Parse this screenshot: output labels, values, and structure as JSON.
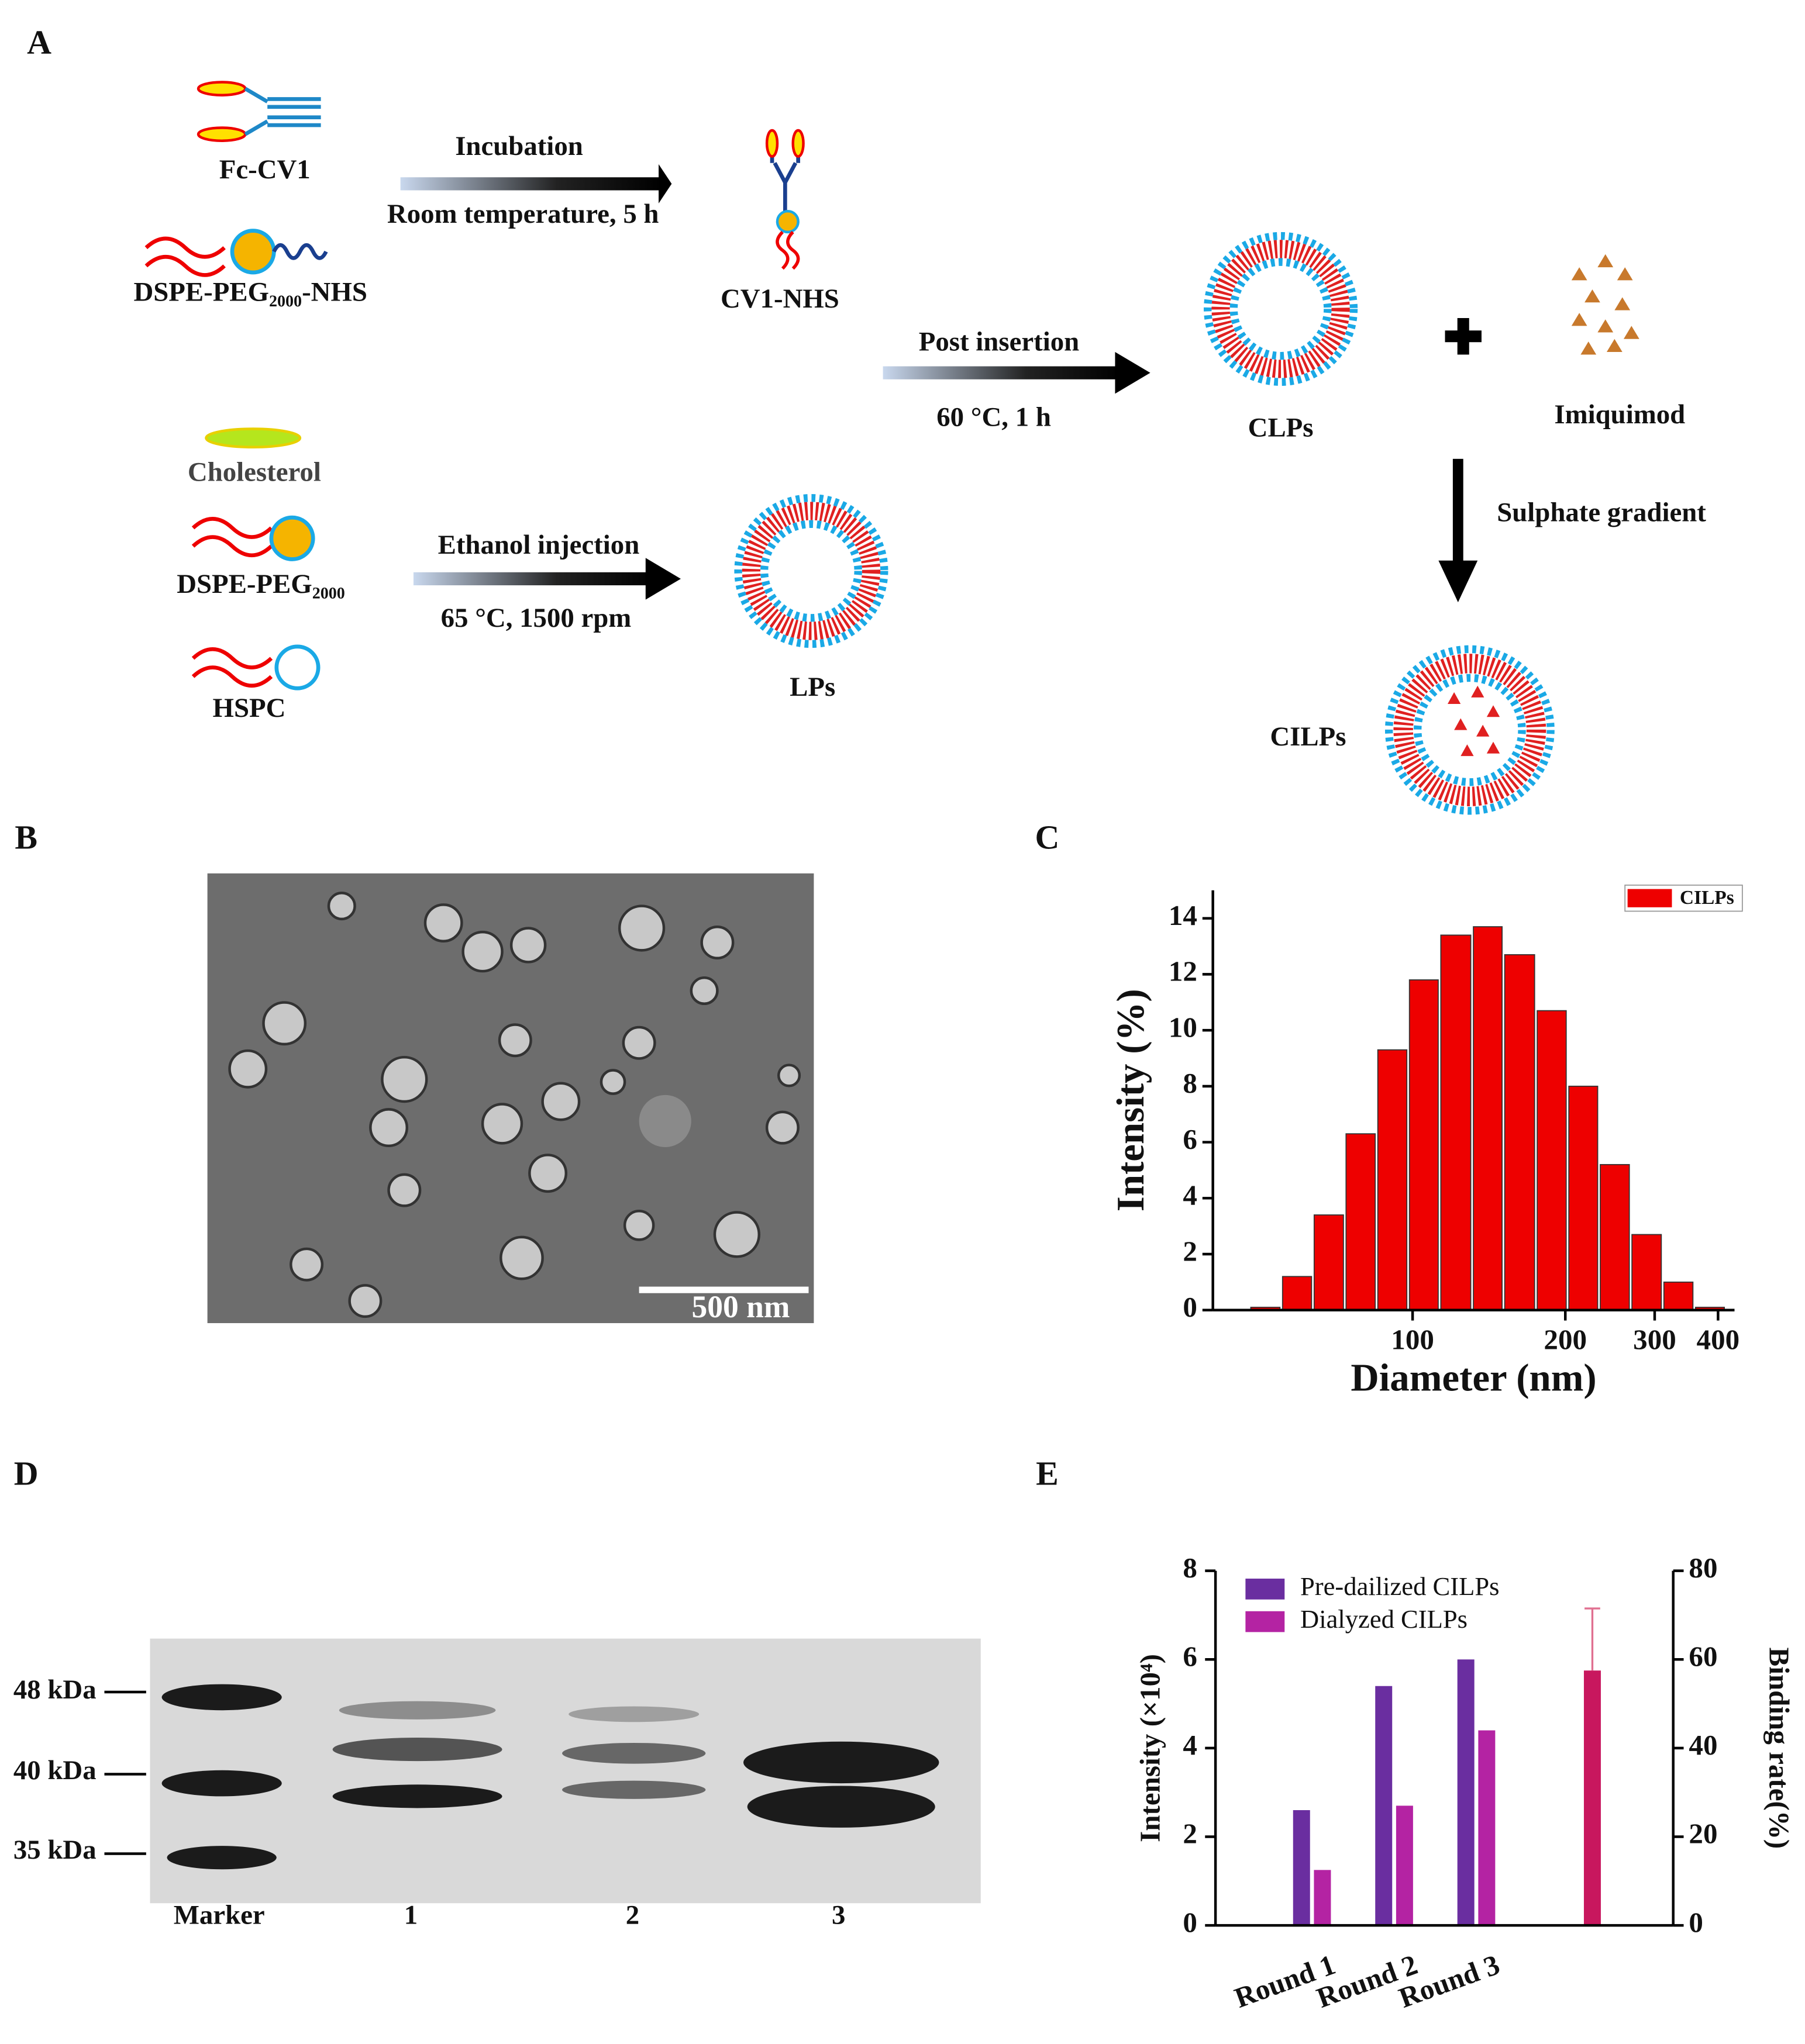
{
  "panel_labels": [
    "A",
    "B",
    "C",
    "D",
    "E"
  ],
  "scheme": {
    "fc_cv1": "Fc-CV1",
    "dspe_peg_nhs": "DSPE-PEG₂₀₀₀-NHS",
    "incubation": "Incubation",
    "incubation_conditions": "Room temperature, 5 h",
    "cv1_nhs": "CV1-NHS",
    "post_insertion": "Post insertion",
    "post_insertion_conditions": "60 °C, 1 h",
    "clps": "CLPs",
    "imiquimod": "Imiquimod",
    "sulphate_gradient": "Sulphate gradient",
    "cholesterol": "Cholesterol",
    "dspe_peg": "DSPE-PEG₂₀₀₀",
    "hspc": "HSPC",
    "ethanol_injection": "Ethanol injection",
    "ethanol_conditions": "65 °C, 1500 rpm",
    "lps": "LPs",
    "cilps": "CILPs"
  },
  "tem": {
    "scale_bar": "500 nm"
  },
  "gel": {
    "markers": [
      "48 kDa",
      "40 kDa",
      "35 kDa"
    ],
    "lanes": [
      "Marker",
      "1",
      "2",
      "3"
    ]
  },
  "chart_data": [
    {
      "type": "histogram",
      "xlabel": "Diameter (nm)",
      "ylabel": "Intensity (%)",
      "log_x": true,
      "bins": [
        47.7,
        55.1,
        63.6,
        73.5,
        84.9,
        98,
        113,
        131,
        151,
        175,
        202,
        233,
        269,
        311,
        359,
        414
      ],
      "values": [
        0.1,
        1.2,
        3.4,
        6.3,
        9.3,
        11.8,
        13.4,
        13.7,
        12.7,
        10.7,
        8.0,
        5.2,
        2.7,
        1.0,
        0.1
      ],
      "series_name": "CILPs",
      "color": "#ee0000",
      "xlim": [
        40.4,
        431
      ],
      "xticks": [
        100,
        200,
        300,
        400
      ],
      "ylim": [
        0,
        15
      ],
      "yticks": [
        0,
        2,
        4,
        6,
        8,
        10,
        12,
        14
      ],
      "legend": "upper right"
    },
    {
      "type": "bar",
      "ylabel": "Intensity (×10⁴)",
      "y2label": "Binding rate(%)",
      "categories": [
        "Round 1",
        "Round 2",
        "Round 3",
        null
      ],
      "series": [
        {
          "name": "Pre-dailized CILPs",
          "color": "#6a2ea0",
          "values": [
            2.6,
            5.4,
            6.0,
            null
          ]
        },
        {
          "name": "Dialyzed CILPs",
          "color": "#b423a3",
          "values": [
            1.25,
            2.7,
            4.4,
            null
          ]
        },
        {
          "color": "#c8175e",
          "axis": "y2",
          "values": [
            null,
            null,
            null,
            57.5
          ],
          "errors": [
            null,
            null,
            null,
            14
          ]
        }
      ],
      "ylim": [
        0,
        8
      ],
      "yticks": [
        0,
        2,
        4,
        6,
        8
      ],
      "y2lim": [
        0,
        80
      ],
      "y2ticks": [
        0,
        20,
        40,
        60,
        80
      ],
      "legend": "upper left"
    }
  ]
}
